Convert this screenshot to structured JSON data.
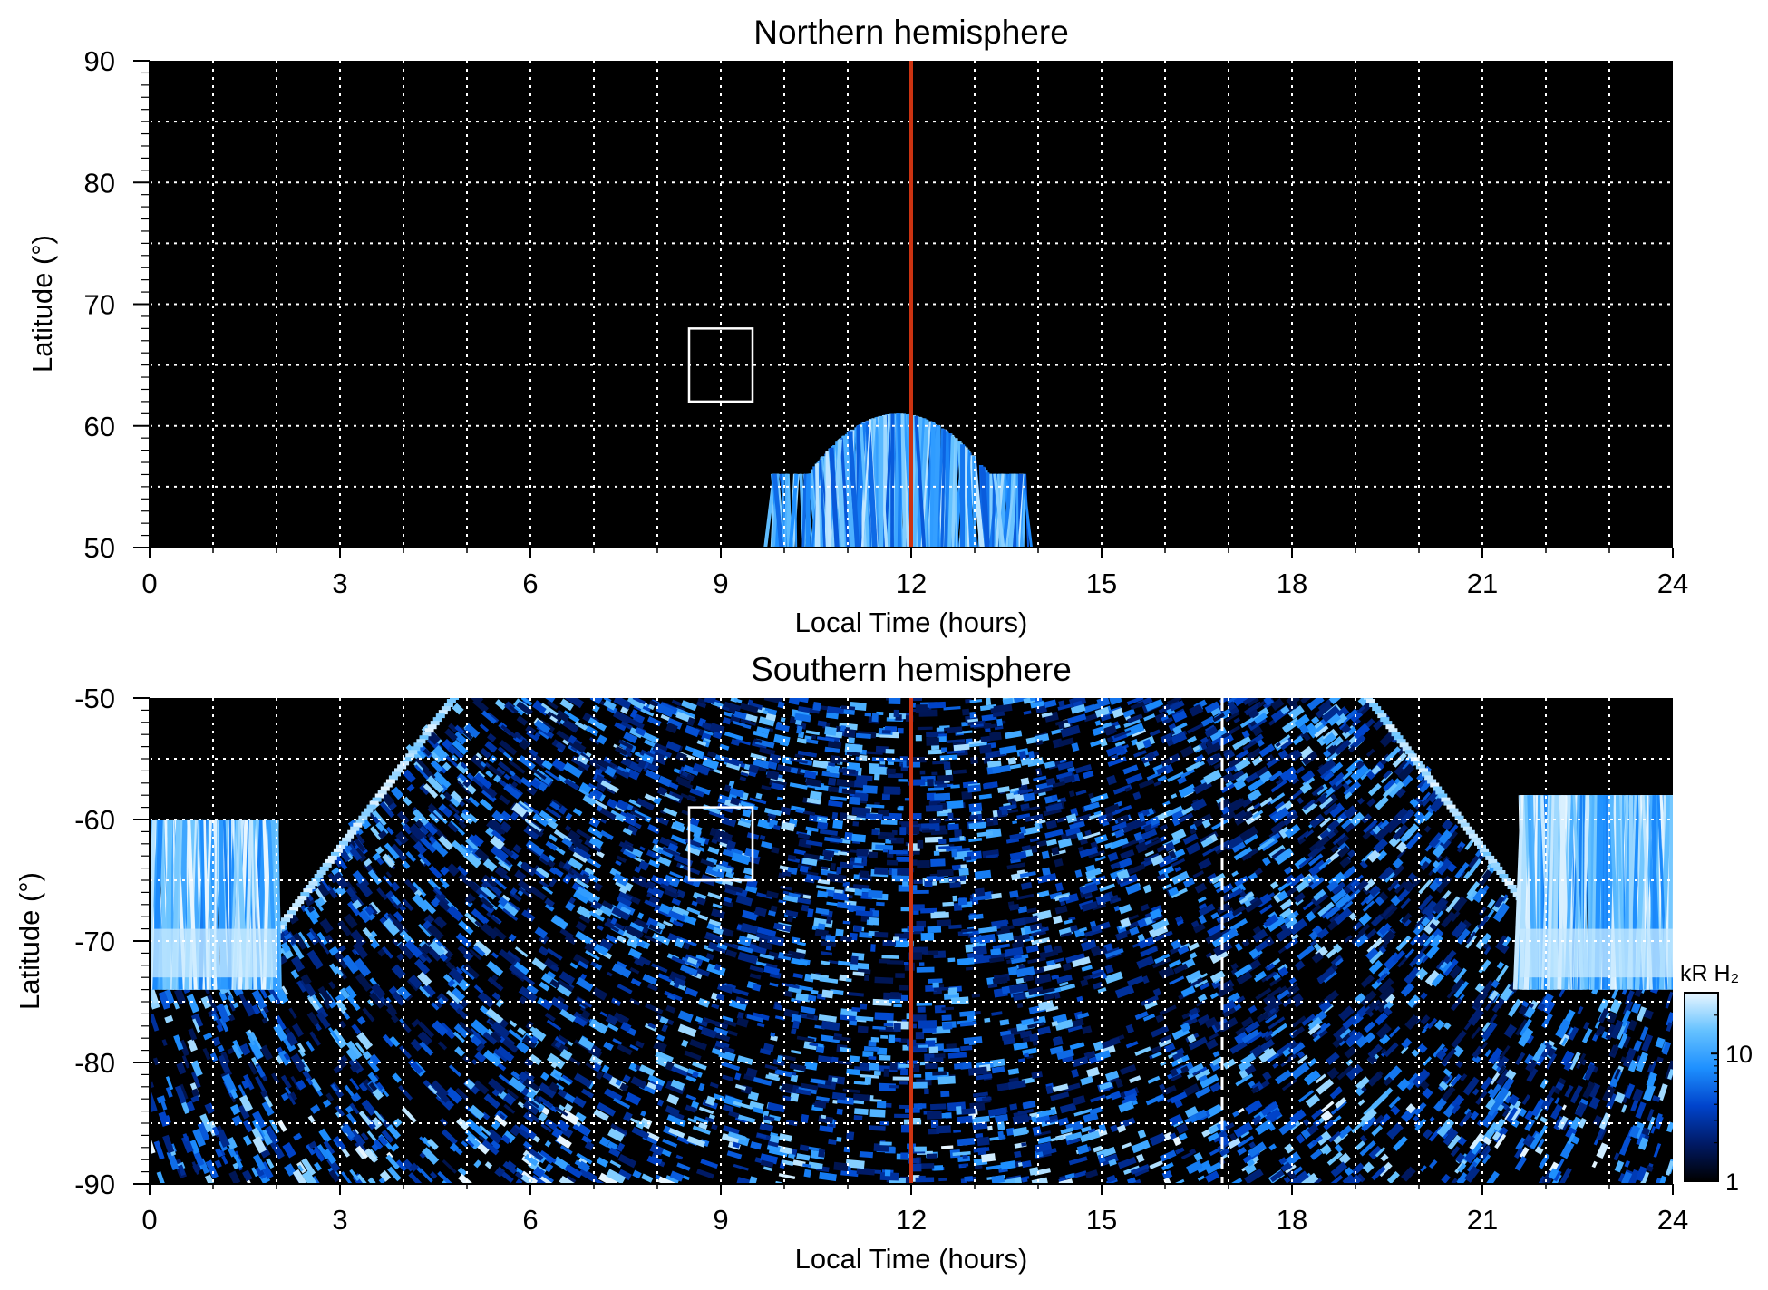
{
  "chart_data": [
    {
      "type": "heatmap",
      "title": "Northern hemisphere",
      "xlabel": "Local Time (hours)",
      "ylabel": "Latitude (°)",
      "xlim": [
        0,
        24
      ],
      "ylim": [
        50,
        90
      ],
      "x_ticks": [
        "0",
        "3",
        "6",
        "9",
        "12",
        "15",
        "18",
        "21",
        "24"
      ],
      "y_ticks": [
        "50",
        "60",
        "70",
        "80",
        "90"
      ],
      "grid": true,
      "noon_line_x": 12,
      "box": {
        "x": [
          8.5,
          9.5
        ],
        "y": [
          62,
          68
        ]
      },
      "emission_regions": [
        {
          "x_range": [
            9.8,
            13.8
          ],
          "lat_range": [
            50,
            61
          ],
          "level": "moderate-high"
        }
      ]
    },
    {
      "type": "heatmap",
      "title": "Southern hemisphere",
      "xlabel": "Local Time (hours)",
      "ylabel": "Latitude (°)",
      "xlim": [
        0,
        24
      ],
      "ylim": [
        -90,
        -50
      ],
      "x_ticks": [
        "0",
        "3",
        "6",
        "9",
        "12",
        "15",
        "18",
        "21",
        "24"
      ],
      "y_ticks": [
        "-50",
        "-60",
        "-70",
        "-80",
        "-90"
      ],
      "grid": true,
      "noon_line_x": 12,
      "dashed_line_x": 16.9,
      "box": {
        "x": [
          8.5,
          9.5
        ],
        "y": [
          -65,
          -59
        ]
      },
      "coverage_boundary": {
        "x_at_minus50": [
          4.7,
          19.1
        ],
        "x_at_minus71": [
          1.8,
          22.3
        ]
      },
      "emission_regions": [
        {
          "x_range": [
            0,
            2
          ],
          "lat_range": [
            -74,
            -60
          ],
          "level": "high"
        },
        {
          "x_range": [
            21.6,
            24
          ],
          "lat_range": [
            -74,
            -58
          ],
          "level": "high"
        }
      ]
    }
  ],
  "colorbar": {
    "label": "kR H₂",
    "ticks": [
      "1",
      "10"
    ],
    "scale": "log",
    "range": [
      1,
      30
    ],
    "colors": [
      "#000000",
      "#001a66",
      "#0044cc",
      "#1e90ff",
      "#66c2ff",
      "#e8f6ff"
    ]
  },
  "colors": {
    "noon_line": "#cc3311",
    "grid": "#ffffff",
    "background": "#000000"
  }
}
